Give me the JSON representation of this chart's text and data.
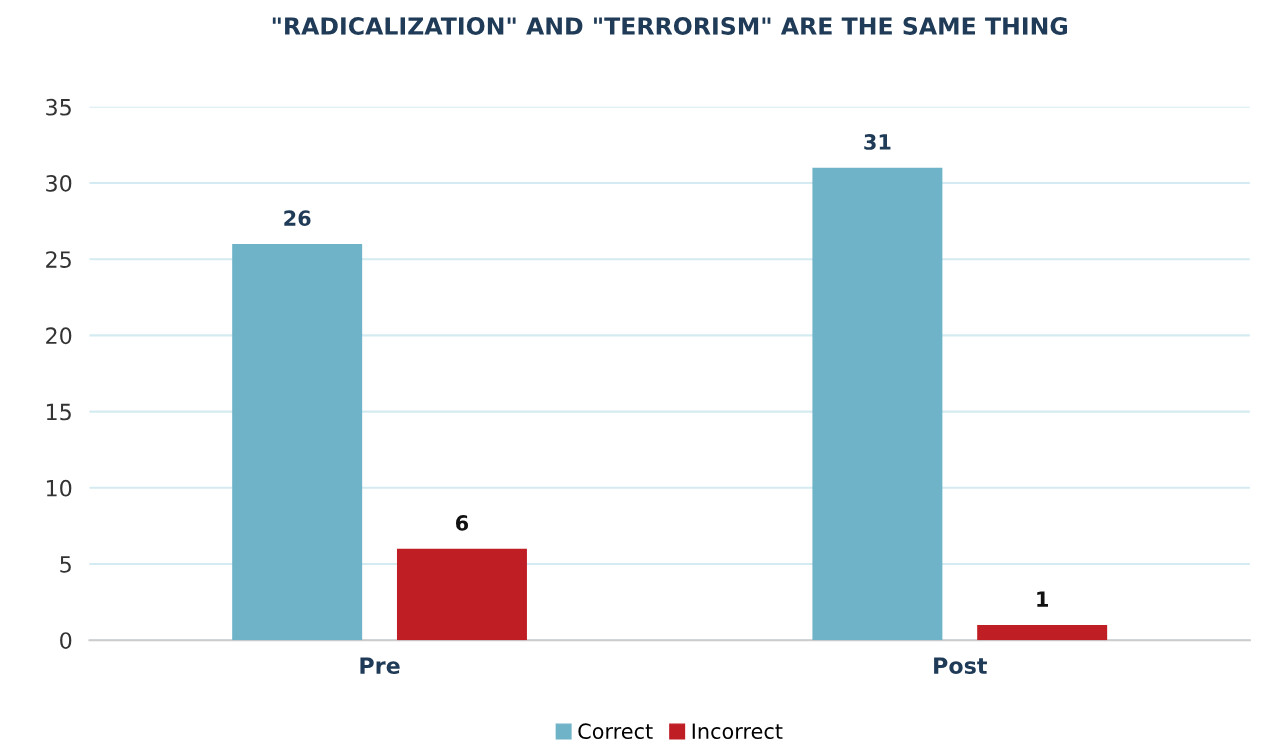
{
  "chart_data": {
    "type": "bar",
    "title": "\"RADICALIZATION\" AND \"TERRORISM\" ARE THE SAME THING",
    "categories": [
      "Pre",
      "Post"
    ],
    "series": [
      {
        "name": "Correct",
        "color": "#6fb3c8",
        "values": [
          26,
          31
        ]
      },
      {
        "name": "Incorrect",
        "color": "#be1e24",
        "values": [
          6,
          1
        ]
      }
    ],
    "ylim": [
      0,
      35
    ],
    "yticks": [
      0,
      5,
      10,
      15,
      20,
      25,
      30,
      35
    ],
    "grid": "y",
    "legend": "bottom",
    "data_labels": true
  }
}
